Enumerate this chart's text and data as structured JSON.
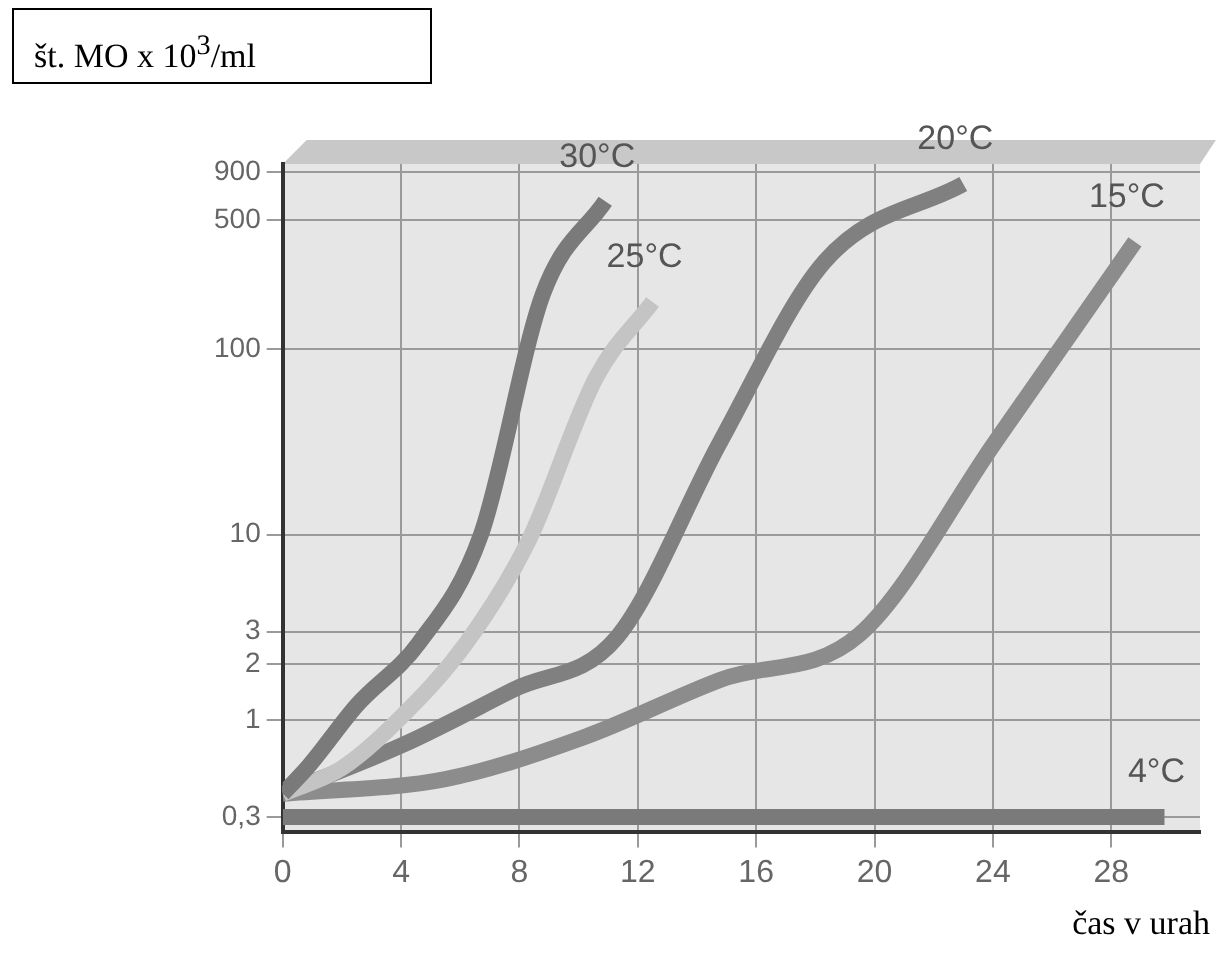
{
  "chart_data": {
    "type": "line",
    "ylabel": "št. MO x 10$^{3}$/ml",
    "xlabel": "čas v urah",
    "xlim": [
      0,
      31
    ],
    "xticks": [
      0,
      4,
      8,
      12,
      16,
      20,
      24,
      28
    ],
    "ylim": [
      0.25,
      1000
    ],
    "log": "y",
    "yticks": [
      {
        "value": 0.3,
        "label": "0,3"
      },
      1,
      2,
      3,
      10,
      100,
      500,
      900
    ],
    "grid": true,
    "legend": false,
    "marker": "none",
    "line_style": "solid",
    "series": [
      {
        "name": "30°C",
        "color": "#7a7a7a",
        "x": [
          0,
          0.9,
          2.5,
          4.6,
          6.7,
          8.8,
          10.9
        ],
        "values": [
          0.4,
          0.57,
          1.2,
          2.6,
          10,
          200,
          630
        ]
      },
      {
        "name": "25°C",
        "color": "#c4c4c4",
        "x": [
          0,
          2,
          3.9,
          6.2,
          8.3,
          10.6,
          12.5
        ],
        "values": [
          0.4,
          0.55,
          1,
          2.6,
          9.2,
          71,
          180
        ]
      },
      {
        "name": "20°C",
        "color": "#808080",
        "x": [
          0,
          4.1,
          7.8,
          11.3,
          14.8,
          18.3,
          23
        ],
        "values": [
          0.4,
          0.74,
          1.46,
          2.8,
          32,
          296,
          780
        ]
      },
      {
        "name": "15°C",
        "color": "#8c8c8c",
        "x": [
          0,
          5.5,
          10.2,
          14.8,
          19.5,
          24.1,
          28.8
        ],
        "values": [
          0.4,
          0.48,
          0.81,
          1.65,
          2.9,
          32,
          380
        ]
      },
      {
        "name": "4°C",
        "color": "#7a7a7a",
        "x": [
          0,
          29.8
        ],
        "values": [
          0.3,
          0.3
        ]
      }
    ]
  }
}
